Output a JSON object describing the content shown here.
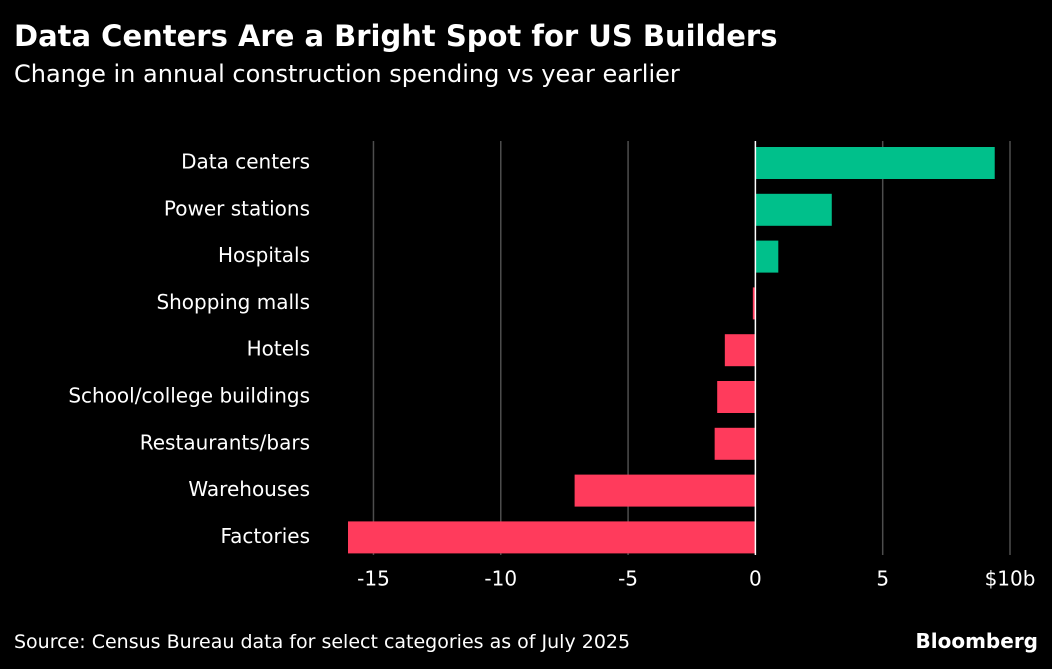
{
  "header": {
    "title": "Data Centers Are a Bright Spot for US Builders",
    "subtitle": "Change in annual construction spending vs year earlier"
  },
  "footer": {
    "source": "Source: Census Bureau data for select categories as of July 2025",
    "logo": "Bloomberg"
  },
  "colors": {
    "positive": "#00c08b",
    "negative": "#ff3b5c",
    "gridline": "#4d4d4d",
    "background": "#000000",
    "text": "#ffffff"
  },
  "chart_data": {
    "type": "bar",
    "orientation": "horizontal",
    "title": "Data Centers Are a Bright Spot for US Builders",
    "subtitle": "Change in annual construction spending vs year earlier",
    "categories": [
      "Data centers",
      "Power stations",
      "Hospitals",
      "Shopping malls",
      "Hotels",
      "School/college buildings",
      "Restaurants/bars",
      "Warehouses",
      "Factories"
    ],
    "values": [
      9.4,
      3.0,
      0.9,
      -0.1,
      -1.2,
      -1.5,
      -1.6,
      -7.1,
      -16.0
    ],
    "x_ticks": [
      -15,
      -10,
      -5,
      0,
      5,
      10
    ],
    "x_tick_labels": [
      "-15",
      "-10",
      "-5",
      "0",
      "5",
      "$10b"
    ],
    "xlim": [
      -16.0,
      10.0
    ],
    "unit": "$b",
    "grid": true
  }
}
